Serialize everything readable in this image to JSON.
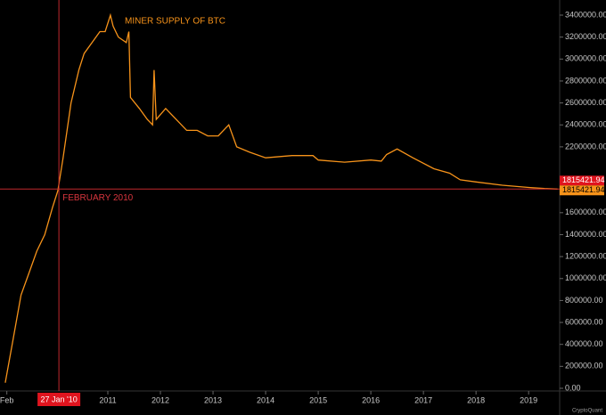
{
  "chart_data": {
    "type": "line",
    "color": "#f7931a",
    "x": [
      2009.05,
      2009.2,
      2009.35,
      2009.5,
      2009.65,
      2009.8,
      2009.95,
      2010.05,
      2010.15,
      2010.3,
      2010.45,
      2010.55,
      2010.7,
      2010.85,
      2010.95,
      2011.05,
      2011.1,
      2011.2,
      2011.35,
      2011.4,
      2011.43,
      2011.6,
      2011.75,
      2011.85,
      2011.88,
      2011.92,
      2012.1,
      2012.3,
      2012.5,
      2012.7,
      2012.9,
      2013.1,
      2013.3,
      2013.45,
      2013.7,
      2014.0,
      2014.5,
      2014.9,
      2015.0,
      2015.5,
      2016.0,
      2016.2,
      2016.3,
      2016.5,
      2016.8,
      2017.2,
      2017.5,
      2017.7,
      2018.0,
      2018.5,
      2019.0,
      2019.3,
      2019.55
    ],
    "values": [
      50000,
      450000,
      850000,
      1050000,
      1250000,
      1400000,
      1650000,
      1800000,
      2100000,
      2600000,
      2900000,
      3050000,
      3150000,
      3250000,
      3250000,
      3400000,
      3300000,
      3200000,
      3150000,
      3250000,
      2650000,
      2550000,
      2450000,
      2400000,
      2900000,
      2450000,
      2550000,
      2450000,
      2350000,
      2350000,
      2300000,
      2300000,
      2400000,
      2200000,
      2150000,
      2100000,
      2120000,
      2120000,
      2080000,
      2060000,
      2080000,
      2070000,
      2130000,
      2180000,
      2100000,
      2000000,
      1960000,
      1900000,
      1880000,
      1850000,
      1830000,
      1820000,
      1815421.94
    ],
    "last_value_label": "1815421.94",
    "xlim": [
      2008.95,
      2019.59
    ],
    "xticks": [
      {
        "value": 2009.08,
        "label": "Feb"
      },
      2011,
      2012,
      2013,
      2014,
      2015,
      2016,
      2017,
      2018,
      2019
    ],
    "ylim": [
      0,
      3400000
    ],
    "yticks": [
      {
        "value": 0,
        "label": "0.00"
      },
      {
        "value": 200000,
        "label": "200000.00"
      },
      {
        "value": 400000,
        "label": "400000.00"
      },
      {
        "value": 600000,
        "label": "600000.00"
      },
      {
        "value": 800000,
        "label": "800000.00"
      },
      {
        "value": 1000000,
        "label": "1000000.00"
      },
      {
        "value": 1200000,
        "label": "1200000.00"
      },
      {
        "value": 1400000,
        "label": "1400000.00"
      },
      {
        "value": 1600000,
        "label": "1600000.00"
      },
      {
        "value": 2200000,
        "label": "2200000.00"
      },
      {
        "value": 2400000,
        "label": "2400000.00"
      },
      {
        "value": 2600000,
        "label": "2600000.00"
      },
      {
        "value": 2800000,
        "label": "2800000.00"
      },
      {
        "value": 3000000,
        "label": "3000000.00"
      },
      {
        "value": 3200000,
        "label": "3200000.00"
      },
      {
        "value": 3400000,
        "label": "3400000.00"
      }
    ],
    "crosshair": {
      "x": {
        "value": 2010.07,
        "label": "27 Jan '10"
      },
      "y": {
        "value": 1815421.94,
        "label": "1815421.94"
      }
    },
    "annotations": [
      {
        "text": "MINER SUPPLY OF BTC"
      },
      {
        "text": "FEBRUARY 2010"
      }
    ],
    "watermark": "CryptoQuant"
  }
}
